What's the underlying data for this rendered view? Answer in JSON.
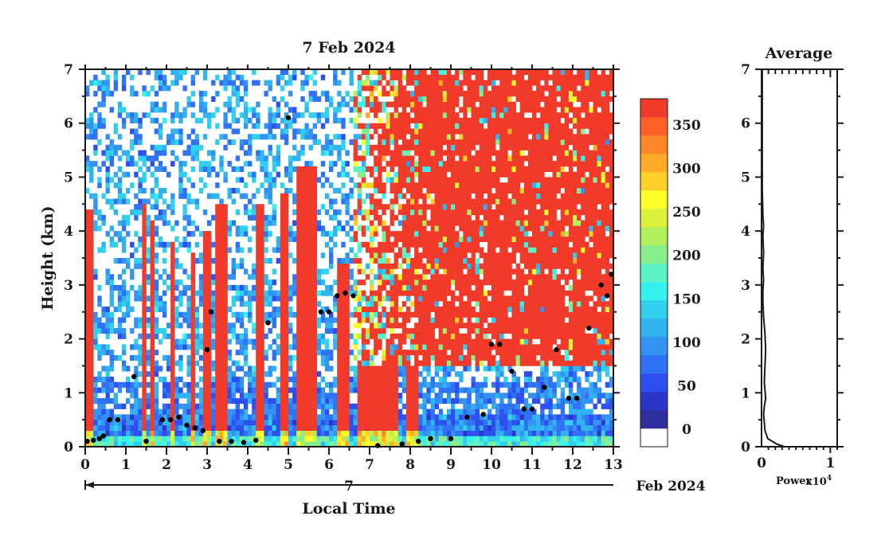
{
  "chart_data": [
    {
      "type": "heatmap",
      "title": "7 Feb 2024",
      "xlabel": "Local Time",
      "ylabel": "Height (km)",
      "xlim": [
        0,
        13
      ],
      "ylim": [
        0,
        7
      ],
      "xticks": [
        "0",
        "1",
        "2",
        "3",
        "4",
        "5",
        "6",
        "7",
        "8",
        "9",
        "10",
        "11",
        "12",
        "13"
      ],
      "yticks": [
        "0",
        "1",
        "2",
        "3",
        "4",
        "5",
        "6",
        "7"
      ],
      "date_axis": {
        "day": "7",
        "month_year": "Feb 2024"
      },
      "colorbar": {
        "ticks": [
          "0",
          "50",
          "100",
          "150",
          "200",
          "250",
          "300",
          "350"
        ],
        "range": [
          -20,
          380
        ],
        "colors": [
          "#ffffff",
          "#2e2e9c",
          "#2a36c8",
          "#2d4ff0",
          "#2f72f5",
          "#3392f2",
          "#33b2f0",
          "#33d0ee",
          "#36f2ee",
          "#5cf2c4",
          "#88ee8c",
          "#b0f05e",
          "#dcf23c",
          "#ffff2a",
          "#ffd02a",
          "#ffab2a",
          "#ff872a",
          "#ff5f2a",
          "#f23a2a"
        ]
      },
      "cloud_base": [
        {
          "x": 0.05,
          "y": 0.1
        },
        {
          "x": 0.2,
          "y": 0.12
        },
        {
          "x": 0.35,
          "y": 0.15
        },
        {
          "x": 0.45,
          "y": 0.2
        },
        {
          "x": 0.6,
          "y": 0.5
        },
        {
          "x": 0.8,
          "y": 0.5
        },
        {
          "x": 1.2,
          "y": 1.3
        },
        {
          "x": 1.5,
          "y": 0.1
        },
        {
          "x": 1.9,
          "y": 0.5
        },
        {
          "x": 2.1,
          "y": 0.5
        },
        {
          "x": 2.3,
          "y": 0.55
        },
        {
          "x": 2.5,
          "y": 0.4
        },
        {
          "x": 2.7,
          "y": 0.35
        },
        {
          "x": 2.9,
          "y": 0.3
        },
        {
          "x": 3.0,
          "y": 1.8
        },
        {
          "x": 3.1,
          "y": 2.5
        },
        {
          "x": 3.3,
          "y": 0.1
        },
        {
          "x": 3.6,
          "y": 0.1
        },
        {
          "x": 3.9,
          "y": 0.08
        },
        {
          "x": 4.2,
          "y": 0.12
        },
        {
          "x": 4.5,
          "y": 2.3
        },
        {
          "x": 5.0,
          "y": 6.1
        },
        {
          "x": 5.8,
          "y": 2.5
        },
        {
          "x": 6.0,
          "y": 2.5
        },
        {
          "x": 6.2,
          "y": 2.8
        },
        {
          "x": 6.4,
          "y": 2.85
        },
        {
          "x": 6.6,
          "y": 2.8
        },
        {
          "x": 7.2,
          "y": 0.02
        },
        {
          "x": 7.8,
          "y": 0.05
        },
        {
          "x": 8.2,
          "y": 0.1
        },
        {
          "x": 8.5,
          "y": 0.15
        },
        {
          "x": 9.0,
          "y": 0.15
        },
        {
          "x": 9.4,
          "y": 0.55
        },
        {
          "x": 9.8,
          "y": 0.6
        },
        {
          "x": 10.0,
          "y": 1.9
        },
        {
          "x": 10.2,
          "y": 1.9
        },
        {
          "x": 10.5,
          "y": 1.4
        },
        {
          "x": 10.8,
          "y": 0.7
        },
        {
          "x": 11.0,
          "y": 0.7
        },
        {
          "x": 11.3,
          "y": 1.1
        },
        {
          "x": 11.6,
          "y": 1.8
        },
        {
          "x": 11.9,
          "y": 0.9
        },
        {
          "x": 12.1,
          "y": 0.9
        },
        {
          "x": 12.4,
          "y": 2.2
        },
        {
          "x": 12.7,
          "y": 3.0
        },
        {
          "x": 12.85,
          "y": 2.8
        },
        {
          "x": 12.95,
          "y": 3.2
        }
      ]
    },
    {
      "type": "line",
      "title": "Average",
      "xlabel": "Power",
      "x_multiplier_label": "x10",
      "x_multiplier_exponent": "4",
      "xlim": [
        0,
        1.1
      ],
      "ylim": [
        0,
        7
      ],
      "xticks": [
        "0",
        "1"
      ],
      "yticks": [
        "0",
        "1",
        "2",
        "3",
        "4",
        "5",
        "6",
        "7"
      ],
      "series": [
        {
          "x": [
            0.33,
            0.22,
            0.09,
            0.05,
            0.04,
            0.03,
            0.04,
            0.06,
            0.05,
            0.04,
            0.05,
            0.06,
            0.05,
            0.03,
            0.02,
            0.02,
            0.03,
            0.02,
            0.03,
            0.02,
            0.03,
            0.02,
            0.01,
            0.01,
            0.01,
            0.01
          ],
          "y": [
            0.0,
            0.05,
            0.15,
            0.3,
            0.45,
            0.6,
            0.75,
            0.9,
            1.05,
            1.2,
            1.5,
            1.8,
            2.1,
            2.4,
            2.7,
            2.9,
            3.1,
            3.3,
            3.6,
            3.9,
            4.1,
            4.3,
            4.8,
            5.5,
            6.3,
            7.0
          ]
        }
      ]
    }
  ]
}
